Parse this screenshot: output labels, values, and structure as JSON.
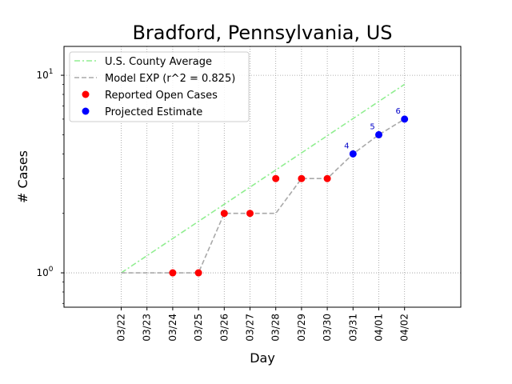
{
  "chart_data": {
    "type": "line",
    "title": "Bradford, Pennsylvania, US",
    "xlabel": "Day",
    "ylabel": "# Cases",
    "yscale": "log",
    "ylim": [
      0.67,
      14
    ],
    "grid": true,
    "legend_placement": "top-left",
    "categories": [
      "03/22",
      "03/23",
      "03/24",
      "03/25",
      "03/26",
      "03/27",
      "03/28",
      "03/29",
      "03/30",
      "03/31",
      "04/01",
      "04/02"
    ],
    "y_ticks": [
      {
        "value": 1,
        "base": "10",
        "exp": "0"
      },
      {
        "value": 10,
        "base": "10",
        "exp": "1"
      }
    ],
    "series": [
      {
        "name": "U.S. County Average",
        "style": "dashdot",
        "color": "#90ee90",
        "points": [
          [
            "03/22",
            1.0
          ],
          [
            "04/02",
            9.0
          ]
        ]
      },
      {
        "name": "Model EXP (r^2 = 0.825)",
        "style": "dashed",
        "color": "#a9a9a9",
        "points": [
          [
            "03/22",
            1
          ],
          [
            "03/23",
            1
          ],
          [
            "03/24",
            1
          ],
          [
            "03/25",
            1
          ],
          [
            "03/26",
            2
          ],
          [
            "03/27",
            2
          ],
          [
            "03/28",
            2
          ],
          [
            "03/29",
            3
          ],
          [
            "03/30",
            3
          ],
          [
            "03/31",
            4
          ],
          [
            "04/01",
            5
          ],
          [
            "04/02",
            6
          ]
        ]
      },
      {
        "name": "Reported Open Cases",
        "style": "marker",
        "color": "#ff0000",
        "points": [
          [
            "03/24",
            1
          ],
          [
            "03/25",
            1
          ],
          [
            "03/26",
            2
          ],
          [
            "03/27",
            2
          ],
          [
            "03/28",
            3
          ],
          [
            "03/29",
            3
          ],
          [
            "03/30",
            3
          ]
        ]
      },
      {
        "name": "Projected Estimate",
        "style": "marker",
        "color": "#0000ff",
        "points": [
          [
            "03/31",
            4
          ],
          [
            "04/01",
            5
          ],
          [
            "04/02",
            6
          ]
        ],
        "labels": [
          "4",
          "5",
          "6"
        ]
      }
    ]
  }
}
